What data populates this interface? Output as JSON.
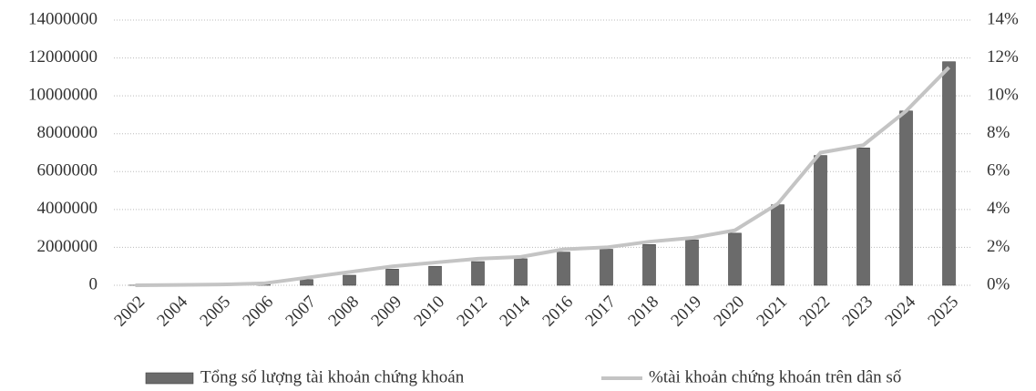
{
  "chart_data": {
    "type": "bar",
    "categories": [
      "2002",
      "2004",
      "2005",
      "2006",
      "2007",
      "2008",
      "2009",
      "2010",
      "2012",
      "2014",
      "2016",
      "2017",
      "2018",
      "2019",
      "2020",
      "2021",
      "2022",
      "2023",
      "2024",
      "2025"
    ],
    "series": [
      {
        "name": "Tổng số lượng tài khoản chứng khoán",
        "type": "bar",
        "color": "#6b6b6b",
        "values": [
          3000,
          20000,
          30000,
          100000,
          300000,
          530000,
          850000,
          1000000,
          1250000,
          1400000,
          1750000,
          1900000,
          2150000,
          2400000,
          2750000,
          4250000,
          6850000,
          7250000,
          9200000,
          11800000
        ]
      },
      {
        "name": "%tài khoản chứng khoán trên dân số",
        "type": "line",
        "axis": "y2",
        "color": "#c4c4c4",
        "values": [
          0,
          0.02,
          0.04,
          0.1,
          0.4,
          0.7,
          1.0,
          1.2,
          1.4,
          1.5,
          1.9,
          2.0,
          2.3,
          2.5,
          2.9,
          4.3,
          7.0,
          7.4,
          9.2,
          11.5
        ]
      }
    ],
    "ylim": [
      0,
      14000000
    ],
    "yticks": [
      0,
      2000000,
      4000000,
      6000000,
      8000000,
      10000000,
      12000000,
      14000000
    ],
    "y2lim": [
      0,
      14
    ],
    "y2ticks": [
      {
        "value": 0,
        "label": "0%"
      },
      {
        "value": 2,
        "label": "2%"
      },
      {
        "value": 4,
        "label": "4%"
      },
      {
        "value": 6,
        "label": "6%"
      },
      {
        "value": 8,
        "label": "8%"
      },
      {
        "value": 10,
        "label": "10%"
      },
      {
        "value": 12,
        "label": "12%"
      },
      {
        "value": 14,
        "label": "14%"
      }
    ],
    "grid": true,
    "legend": "bottom"
  }
}
